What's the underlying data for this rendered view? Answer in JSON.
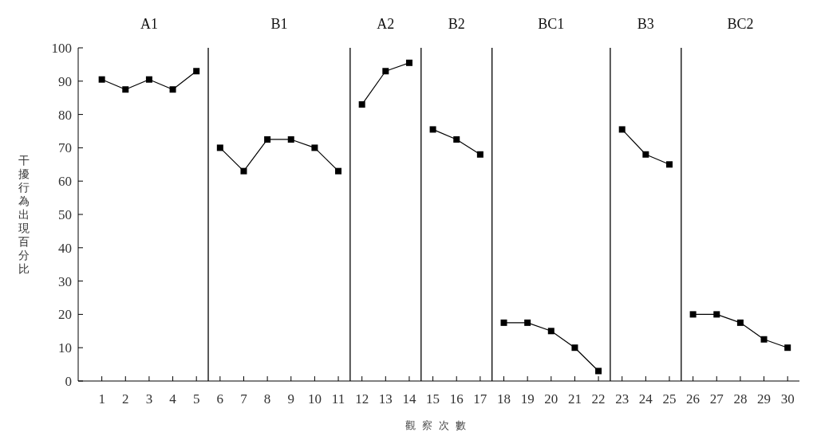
{
  "chart_data": {
    "type": "line",
    "xlabel": "觀察次數",
    "ylabel": "干擾行為出現百分比",
    "xlim": [
      0,
      30.5
    ],
    "xticks": [
      1,
      2,
      3,
      4,
      5,
      6,
      7,
      8,
      9,
      10,
      11,
      12,
      13,
      14,
      15,
      16,
      17,
      18,
      19,
      20,
      21,
      22,
      23,
      24,
      25,
      26,
      27,
      28,
      29,
      30
    ],
    "ylim": [
      0,
      100
    ],
    "yticks": [
      0,
      10,
      20,
      30,
      40,
      50,
      60,
      70,
      80,
      90,
      100
    ],
    "grid": false,
    "legend": false,
    "marker": "square",
    "line_style": "solid",
    "series": [
      {
        "color": "#000000",
        "x": [
          1,
          2,
          3,
          4,
          5
        ],
        "values": [
          90.5,
          87.5,
          90.5,
          87.5,
          93
        ]
      },
      {
        "color": "#000000",
        "x": [
          6,
          7,
          8,
          9,
          10,
          11
        ],
        "values": [
          70,
          63,
          72.5,
          72.5,
          70,
          63
        ]
      },
      {
        "color": "#000000",
        "x": [
          12,
          13,
          14
        ],
        "values": [
          83,
          93,
          95.5
        ]
      },
      {
        "color": "#000000",
        "x": [
          15,
          16,
          17
        ],
        "values": [
          75.5,
          72.5,
          68
        ]
      },
      {
        "color": "#000000",
        "x": [
          18,
          19,
          20,
          21,
          22
        ],
        "values": [
          17.5,
          17.5,
          15,
          10,
          3
        ]
      },
      {
        "color": "#000000",
        "x": [
          23,
          24,
          25
        ],
        "values": [
          75.5,
          68,
          65
        ]
      },
      {
        "color": "#000000",
        "x": [
          26,
          27,
          28,
          29,
          30
        ],
        "values": [
          20,
          20,
          17.5,
          12.5,
          10
        ]
      }
    ],
    "ref_lines": [
      {
        "axis": "x",
        "value": 5.5,
        "color": "#000000"
      },
      {
        "axis": "x",
        "value": 11.5,
        "color": "#000000"
      },
      {
        "axis": "x",
        "value": 14.5,
        "color": "#000000"
      },
      {
        "axis": "x",
        "value": 17.5,
        "color": "#000000"
      },
      {
        "axis": "x",
        "value": 22.5,
        "color": "#000000"
      },
      {
        "axis": "x",
        "value": 25.5,
        "color": "#000000"
      }
    ],
    "annotations": [
      "A1",
      "B1",
      "A2",
      "B2",
      "BC1",
      "B3",
      "BC2"
    ]
  }
}
